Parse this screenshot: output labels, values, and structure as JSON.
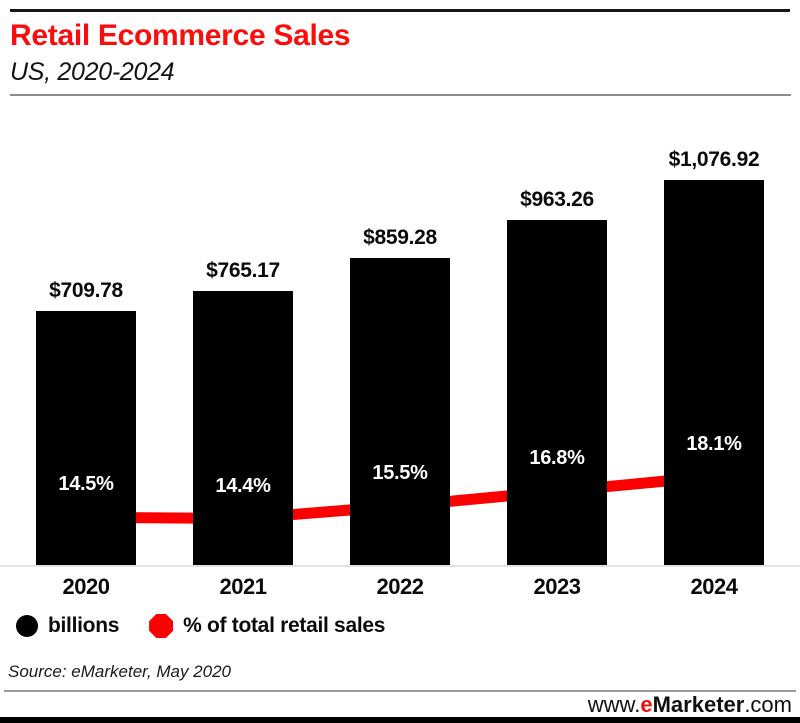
{
  "header": {
    "title": "Retail Ecommerce Sales",
    "subtitle": "US, 2020-2024"
  },
  "chart_data": {
    "type": "bar",
    "title": "Retail Ecommerce Sales",
    "subtitle": "US, 2020-2024",
    "categories": [
      "2020",
      "2021",
      "2022",
      "2023",
      "2024"
    ],
    "series": [
      {
        "name": "billions",
        "type": "bar",
        "values": [
          709.78,
          765.17,
          859.28,
          963.26,
          1076.92
        ],
        "labels": [
          "$709.78",
          "$765.17",
          "$859.28",
          "$963.26",
          "$1,076.92"
        ],
        "color": "#000000"
      },
      {
        "name": "% of total retail sales",
        "type": "line",
        "values": [
          14.5,
          14.4,
          15.5,
          16.8,
          18.1
        ],
        "labels": [
          "14.5%",
          "14.4%",
          "15.5%",
          "16.8%",
          "18.1%"
        ],
        "color": "#fa0000"
      }
    ],
    "ylim": [
      0,
      1300
    ],
    "y2lim": [
      10.3,
      51.3
    ],
    "grid": false,
    "legend_position": "bottom"
  },
  "legend": {
    "items": [
      {
        "label": "billions",
        "marker": "circle",
        "color": "#000000"
      },
      {
        "label": "% of total retail sales",
        "marker": "octagon",
        "color": "#fa0000"
      }
    ]
  },
  "source": {
    "text": "Source: eMarketer, May 2020"
  },
  "footer": {
    "site_prefix": "www.",
    "site_e": "e",
    "site_brand": "Marketer",
    "site_suffix": ".com"
  },
  "colors": {
    "accent_red": "#f90d0d",
    "line_red": "#fa0000",
    "bar_black": "#000000",
    "baseline_gray": "#dce3ea"
  }
}
